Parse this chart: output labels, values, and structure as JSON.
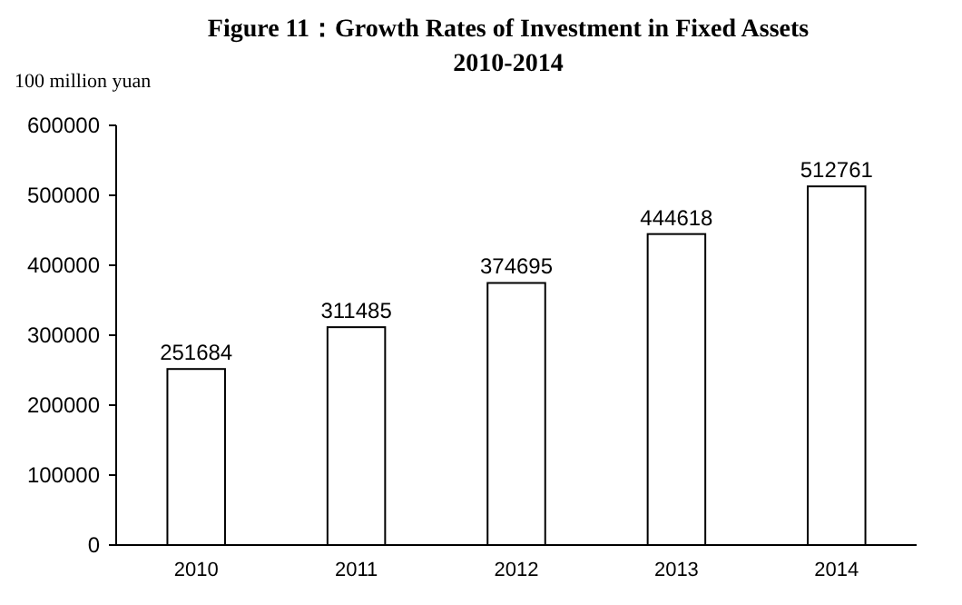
{
  "chart_data": {
    "type": "bar",
    "title": "Figure 11：Growth Rates of Investment in Fixed Assets\n2010-2014",
    "ylabel": "100 million yuan",
    "categories": [
      "2010",
      "2011",
      "2012",
      "2013",
      "2014"
    ],
    "values": [
      251684,
      311485,
      374695,
      444618,
      512761
    ],
    "color": "#ffffff",
    "ylim": [
      0,
      600000
    ],
    "yticks": [
      0,
      100000,
      200000,
      300000,
      400000,
      500000,
      600000
    ],
    "data_labels": true
  }
}
